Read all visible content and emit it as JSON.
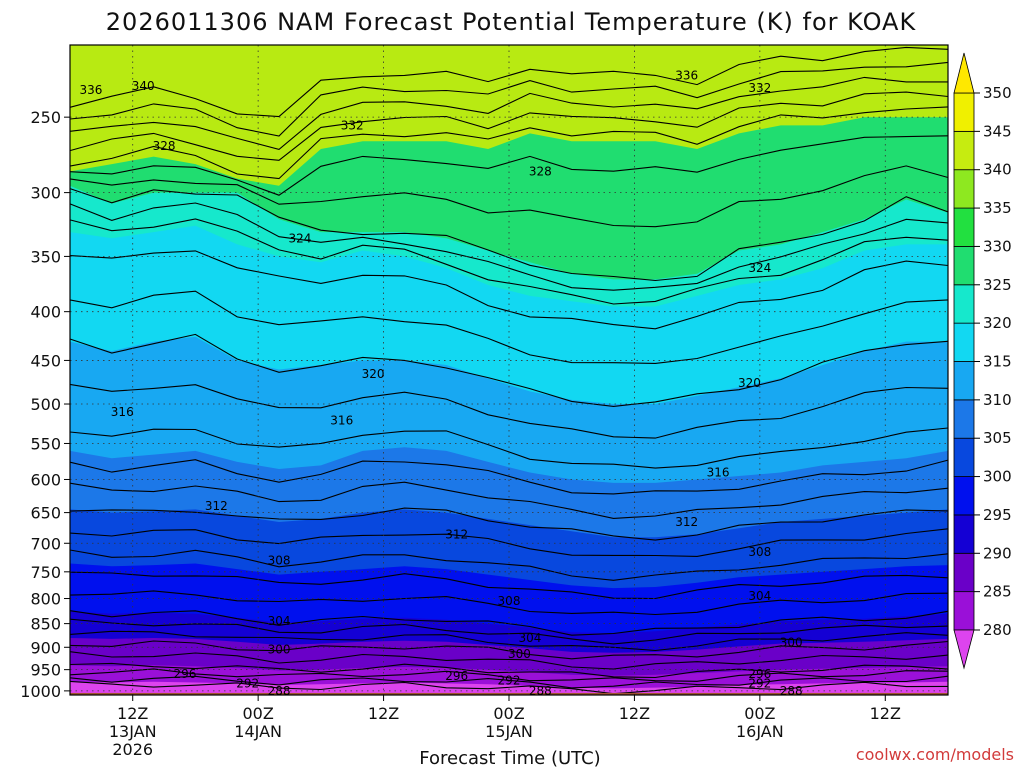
{
  "chart_data": {
    "type": "heatmap",
    "title": "2026011306 NAM Forecast Potential Temperature (K) for KOAK",
    "xlabel": "Forecast Time (UTC)",
    "ylabel": "",
    "credit": "coolwx.com/models",
    "y_scale": "pressure (log), inverted",
    "y_ticks": [
      250,
      300,
      350,
      400,
      450,
      500,
      550,
      600,
      650,
      700,
      750,
      800,
      850,
      900,
      950,
      1000
    ],
    "ylim": [
      1000,
      210
    ],
    "x_ticks": [
      {
        "hour": 6,
        "label": "12Z",
        "date": "13JAN",
        "year": "2026"
      },
      {
        "hour": 18,
        "label": "00Z",
        "date": "14JAN",
        "year": ""
      },
      {
        "hour": 30,
        "label": "12Z",
        "date": "",
        "year": ""
      },
      {
        "hour": 42,
        "label": "00Z",
        "date": "15JAN",
        "year": ""
      },
      {
        "hour": 54,
        "label": "12Z",
        "date": "",
        "year": ""
      },
      {
        "hour": 66,
        "label": "00Z",
        "date": "16JAN",
        "year": ""
      },
      {
        "hour": 78,
        "label": "12Z",
        "date": "",
        "year": ""
      }
    ],
    "xlim": [
      0,
      84
    ],
    "colorbar": {
      "units": "K",
      "levels": [
        280,
        285,
        290,
        295,
        300,
        305,
        310,
        315,
        320,
        325,
        330,
        335,
        340,
        345,
        350
      ],
      "colors": [
        "#dd44ee",
        "#9a10d8",
        "#6a00c8",
        "#1400d4",
        "#0010ee",
        "#0848de",
        "#1c78e8",
        "#18a8f2",
        "#12d8f2",
        "#16e8cc",
        "#20dd70",
        "#22e040",
        "#8ee820",
        "#c6ec10",
        "#f0f000",
        "#ffe800"
      ]
    },
    "shaded_isentropes": [
      {
        "theta": 335,
        "p": [
          285,
          280,
          275,
          280,
          290,
          295,
          270,
          265,
          265,
          265,
          270,
          260,
          265,
          265,
          265,
          270,
          260,
          255,
          255,
          250,
          250,
          250
        ]
      },
      {
        "theta": 330,
        "p": [
          295,
          308,
          300,
          300,
          300,
          320,
          330,
          330,
          330,
          335,
          345,
          355,
          365,
          370,
          370,
          365,
          345,
          340,
          330,
          320,
          305,
          315
        ]
      },
      {
        "theta": 325,
        "p": [
          330,
          335,
          330,
          325,
          340,
          350,
          355,
          345,
          350,
          360,
          375,
          385,
          390,
          395,
          395,
          385,
          375,
          370,
          360,
          345,
          340,
          340
        ]
      },
      {
        "theta": 320,
        "p": [
          430,
          440,
          430,
          425,
          450,
          460,
          455,
          450,
          450,
          455,
          470,
          485,
          495,
          500,
          500,
          490,
          480,
          470,
          455,
          440,
          430,
          430
        ]
      },
      {
        "theta": 315,
        "p": [
          560,
          570,
          565,
          560,
          575,
          585,
          580,
          560,
          555,
          560,
          575,
          590,
          600,
          605,
          605,
          600,
          595,
          590,
          580,
          575,
          570,
          560
        ]
      },
      {
        "theta": 310,
        "p": [
          645,
          650,
          648,
          645,
          655,
          665,
          660,
          650,
          645,
          650,
          660,
          670,
          680,
          690,
          690,
          685,
          675,
          665,
          660,
          655,
          650,
          645
        ]
      },
      {
        "theta": 305,
        "p": [
          735,
          740,
          738,
          735,
          745,
          755,
          750,
          745,
          740,
          745,
          755,
          765,
          775,
          780,
          778,
          770,
          760,
          755,
          750,
          745,
          740,
          738
        ]
      },
      {
        "theta": 300,
        "p": [
          825,
          830,
          828,
          830,
          838,
          848,
          845,
          840,
          838,
          842,
          850,
          858,
          868,
          870,
          866,
          858,
          852,
          845,
          842,
          840,
          835,
          830
        ]
      },
      {
        "theta": 295,
        "p": [
          880,
          882,
          880,
          882,
          888,
          895,
          892,
          888,
          886,
          888,
          895,
          902,
          910,
          912,
          910,
          905,
          898,
          892,
          890,
          888,
          885,
          882
        ]
      },
      {
        "theta": 290,
        "p": [
          940,
          942,
          940,
          942,
          946,
          952,
          950,
          946,
          944,
          946,
          950,
          956,
          962,
          964,
          962,
          958,
          954,
          950,
          948,
          946,
          944,
          942
        ]
      },
      {
        "theta": 285,
        "p": [
          978,
          980,
          978,
          980,
          982,
          986,
          984,
          982,
          980,
          982,
          984,
          988,
          992,
          994,
          992,
          990,
          986,
          984,
          982,
          980,
          980,
          978
        ]
      }
    ],
    "contour_interval": 2,
    "contour_labels": [
      {
        "theta": 340,
        "hour": 7,
        "p": 232
      },
      {
        "theta": 336,
        "hour": 2,
        "p": 234
      },
      {
        "theta": 336,
        "hour": 59,
        "p": 226
      },
      {
        "theta": 332,
        "hour": 27,
        "p": 255
      },
      {
        "theta": 332,
        "hour": 66,
        "p": 233
      },
      {
        "theta": 328,
        "hour": 9,
        "p": 268
      },
      {
        "theta": 328,
        "hour": 45,
        "p": 285
      },
      {
        "theta": 324,
        "hour": 22,
        "p": 335
      },
      {
        "theta": 324,
        "hour": 66,
        "p": 360
      },
      {
        "theta": 320,
        "hour": 29,
        "p": 465
      },
      {
        "theta": 320,
        "hour": 65,
        "p": 475
      },
      {
        "theta": 316,
        "hour": 5,
        "p": 510
      },
      {
        "theta": 316,
        "hour": 26,
        "p": 520
      },
      {
        "theta": 316,
        "hour": 62,
        "p": 590
      },
      {
        "theta": 312,
        "hour": 14,
        "p": 640
      },
      {
        "theta": 312,
        "hour": 37,
        "p": 685
      },
      {
        "theta": 312,
        "hour": 59,
        "p": 665
      },
      {
        "theta": 308,
        "hour": 20,
        "p": 730
      },
      {
        "theta": 308,
        "hour": 42,
        "p": 805
      },
      {
        "theta": 308,
        "hour": 66,
        "p": 715
      },
      {
        "theta": 304,
        "hour": 20,
        "p": 845
      },
      {
        "theta": 304,
        "hour": 44,
        "p": 880
      },
      {
        "theta": 304,
        "hour": 66,
        "p": 795
      },
      {
        "theta": 300,
        "hour": 20,
        "p": 905
      },
      {
        "theta": 300,
        "hour": 43,
        "p": 915
      },
      {
        "theta": 300,
        "hour": 69,
        "p": 890
      },
      {
        "theta": 296,
        "hour": 11,
        "p": 960
      },
      {
        "theta": 296,
        "hour": 37,
        "p": 965
      },
      {
        "theta": 296,
        "hour": 66,
        "p": 960
      },
      {
        "theta": 292,
        "hour": 17,
        "p": 982
      },
      {
        "theta": 292,
        "hour": 42,
        "p": 975
      },
      {
        "theta": 292,
        "hour": 66,
        "p": 982
      },
      {
        "theta": 288,
        "hour": 20,
        "p": 1000
      },
      {
        "theta": 288,
        "hour": 45,
        "p": 1000
      },
      {
        "theta": 288,
        "hour": 69,
        "p": 1000
      }
    ],
    "ground": {
      "color": "#a0522d",
      "below_p": 1005
    }
  }
}
